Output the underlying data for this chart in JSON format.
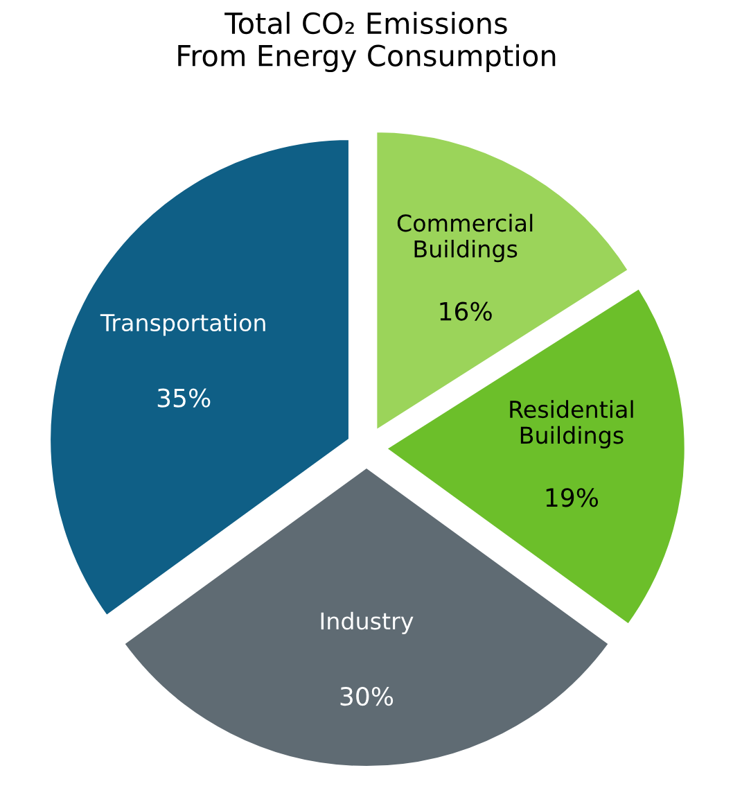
{
  "chart_data": {
    "type": "pie",
    "title": "Total CO₂ Emissions\nFrom Energy Consumption",
    "categories": [
      "Commercial Buildings",
      "Residential Buildings",
      "Industry",
      "Transportation"
    ],
    "values": [
      16,
      19,
      30,
      35
    ],
    "colors": [
      "#9bd45a",
      "#6cbf2a",
      "#5f6b73",
      "#0f5f86"
    ],
    "value_labels": [
      "16%",
      "19%",
      "30%",
      "35%"
    ]
  }
}
